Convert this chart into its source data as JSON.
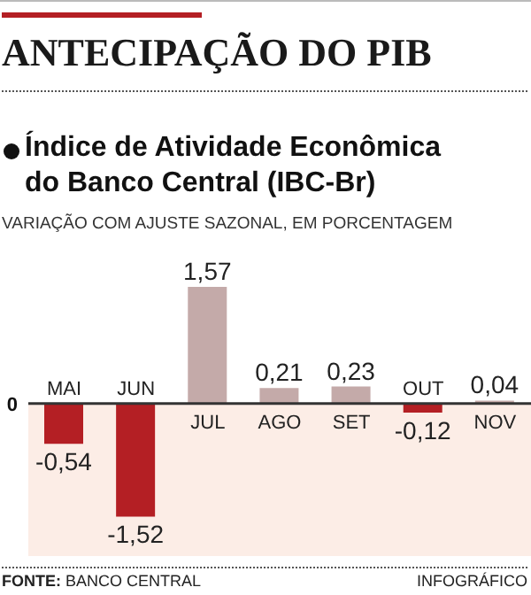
{
  "chart_data": {
    "type": "bar",
    "title": "ANTECIPAÇÃO DO PIB",
    "subtitle": "Índice de Atividade Econômica do Banco Central (IBC-Br)",
    "ylabel": "VARIAÇÃO COM AJUSTE SAZONAL, EM PORCENTAGEM",
    "categories": [
      "MAI",
      "JUN",
      "JUL",
      "AGO",
      "SET",
      "OUT",
      "NOV"
    ],
    "values": [
      -0.54,
      -1.52,
      1.57,
      0.21,
      0.23,
      -0.12,
      0.04
    ],
    "value_labels": [
      "-0,54",
      "-1,52",
      "1,57",
      "0,21",
      "0,23",
      "-0,12",
      "0,04"
    ],
    "colors": [
      "#b41f24",
      "#b41f24",
      "#c4aaa9",
      "#c4aaa9",
      "#c4aaa9",
      "#b41f24",
      "#c4aaa9"
    ],
    "bands": [
      {
        "axis": "y",
        "from": 0,
        "to": -2.05,
        "color": "#fcede6"
      }
    ],
    "annotations": [
      "0",
      "FONTE: BANCO CENTRAL",
      "INFOGRÁFICO"
    ]
  }
}
